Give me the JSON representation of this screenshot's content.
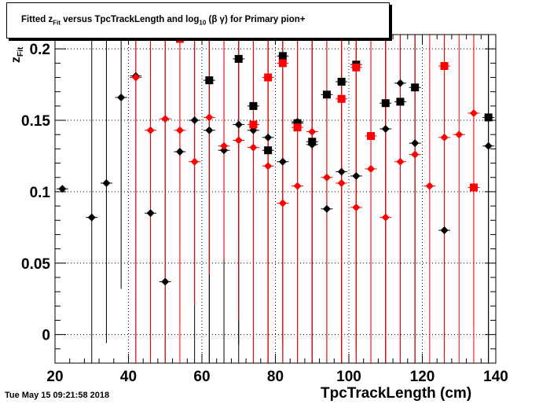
{
  "chart_data": {
    "type": "scatter",
    "title_parts": {
      "lead": "Fitted  z",
      "lead_sub": "Fit",
      "middle": "  versus TpcTrackLength and log",
      "middle_sub": "10",
      "tail": " (β γ) for Primary pion+"
    },
    "xlabel": "TpcTrackLength (cm)",
    "ylabel_main": "z",
    "ylabel_sub": "Fit",
    "xlim": [
      20,
      140
    ],
    "ylim": [
      -0.02,
      0.21
    ],
    "x_ticks": [
      20,
      40,
      60,
      80,
      100,
      120,
      140
    ],
    "y_ticks": [
      0,
      0.05,
      0.1,
      0.15,
      0.2
    ],
    "y_tick_labels": [
      "0",
      "0.05",
      "0.1",
      "0.15",
      "0.2"
    ],
    "grid": true,
    "colors": {
      "black": "#000000",
      "red": "#ff0000"
    },
    "series": [
      {
        "color": "#000000",
        "marker": "diamond",
        "points": [
          {
            "x": 22,
            "y": 0.102,
            "err": null
          },
          {
            "x": 30,
            "y": 0.082,
            "err": 0.2
          },
          {
            "x": 34,
            "y": 0.106,
            "err": 0.112
          },
          {
            "x": 38,
            "y": 0.166,
            "err": 0.134
          },
          {
            "x": 42,
            "y": 0.181,
            "err": 0.2
          },
          {
            "x": 46,
            "y": 0.085,
            "err": 0.2
          },
          {
            "x": 50,
            "y": 0.037,
            "err": 0.2
          },
          {
            "x": 54,
            "y": 0.128,
            "err": 0.068
          },
          {
            "x": 58,
            "y": 0.15,
            "err": 0.2
          },
          {
            "x": 62,
            "y": 0.143,
            "err": 0.2
          },
          {
            "x": 66,
            "y": 0.129,
            "err": 0.2
          },
          {
            "x": 70,
            "y": 0.147,
            "err": 0.2
          },
          {
            "x": 74,
            "y": 0.143,
            "err": 0.2
          },
          {
            "x": 78,
            "y": 0.138,
            "err": 0.2
          },
          {
            "x": 82,
            "y": 0.121,
            "err": 0.2
          },
          {
            "x": 86,
            "y": 0.149,
            "err": 0.2
          },
          {
            "x": 90,
            "y": 0.133,
            "err": 0.2
          },
          {
            "x": 94,
            "y": 0.088,
            "err": 0.2
          },
          {
            "x": 98,
            "y": 0.114,
            "err": 0.2
          },
          {
            "x": 102,
            "y": 0.111,
            "err": 0.2
          },
          {
            "x": 110,
            "y": 0.144,
            "err": 0.2
          },
          {
            "x": 114,
            "y": 0.176,
            "err": 0.2
          },
          {
            "x": 118,
            "y": 0.134,
            "err": 0.2
          },
          {
            "x": 126,
            "y": 0.073,
            "err": 0.2
          },
          {
            "x": 138,
            "y": 0.132,
            "err": 0.2
          }
        ]
      },
      {
        "color": "#000000",
        "marker": "square",
        "points": [
          {
            "x": 62,
            "y": 0.178,
            "err": 0.2
          },
          {
            "x": 70,
            "y": 0.193,
            "err": 0.2
          },
          {
            "x": 74,
            "y": 0.16,
            "err": 0.2
          },
          {
            "x": 78,
            "y": 0.129,
            "err": 0.2
          },
          {
            "x": 82,
            "y": 0.195,
            "err": 0.2
          },
          {
            "x": 86,
            "y": 0.148,
            "err": 0.2
          },
          {
            "x": 90,
            "y": 0.135,
            "err": 0.2
          },
          {
            "x": 94,
            "y": 0.168,
            "err": 0.2
          },
          {
            "x": 98,
            "y": 0.177,
            "err": 0.2
          },
          {
            "x": 102,
            "y": 0.189,
            "err": 0.2
          },
          {
            "x": 110,
            "y": 0.162,
            "err": 0.2
          },
          {
            "x": 114,
            "y": 0.163,
            "err": 0.2
          },
          {
            "x": 118,
            "y": 0.173,
            "err": 0.2
          },
          {
            "x": 138,
            "y": 0.152,
            "err": 0.2
          }
        ]
      },
      {
        "color": "#ff0000",
        "marker": "diamond",
        "points": [
          {
            "x": 42,
            "y": 0.18,
            "err": 0.2
          },
          {
            "x": 46,
            "y": 0.143,
            "err": 0.2
          },
          {
            "x": 50,
            "y": 0.151,
            "err": 0.2
          },
          {
            "x": 54,
            "y": 0.143,
            "err": 0.2
          },
          {
            "x": 58,
            "y": 0.121,
            "err": 0.1
          },
          {
            "x": 62,
            "y": 0.152,
            "err": 0.11
          },
          {
            "x": 66,
            "y": 0.132,
            "err": 0.08
          },
          {
            "x": 70,
            "y": 0.136,
            "err": 0.066
          },
          {
            "x": 74,
            "y": 0.131,
            "err": 0.08
          },
          {
            "x": 78,
            "y": 0.118,
            "err": 0.2
          },
          {
            "x": 82,
            "y": 0.092,
            "err": 0.2
          },
          {
            "x": 86,
            "y": 0.104,
            "err": 0.2
          },
          {
            "x": 90,
            "y": 0.142,
            "err": 0.2
          },
          {
            "x": 94,
            "y": 0.11,
            "err": 0.2
          },
          {
            "x": 98,
            "y": 0.106,
            "err": 0.2
          },
          {
            "x": 102,
            "y": 0.089,
            "err": 0.2
          },
          {
            "x": 106,
            "y": 0.116,
            "err": 0.2
          },
          {
            "x": 110,
            "y": 0.082,
            "err": 0.2
          },
          {
            "x": 114,
            "y": 0.121,
            "err": 0.2
          },
          {
            "x": 118,
            "y": 0.126,
            "err": 0.2
          },
          {
            "x": 122,
            "y": 0.104,
            "err": 0.2
          },
          {
            "x": 126,
            "y": 0.138,
            "err": 0.2
          },
          {
            "x": 130,
            "y": 0.14,
            "err": 0.2
          },
          {
            "x": 134,
            "y": 0.155,
            "err": 0.15
          }
        ]
      },
      {
        "color": "#ff0000",
        "marker": "square",
        "points": [
          {
            "x": 54,
            "y": 0.207,
            "err": 0.2
          },
          {
            "x": 70,
            "y": 0.21,
            "err": 0.2
          },
          {
            "x": 74,
            "y": 0.147,
            "err": 0.2
          },
          {
            "x": 78,
            "y": 0.18,
            "err": 0.2
          },
          {
            "x": 82,
            "y": 0.19,
            "err": 0.2
          },
          {
            "x": 86,
            "y": 0.145,
            "err": 0.2
          },
          {
            "x": 98,
            "y": 0.165,
            "err": 0.2
          },
          {
            "x": 102,
            "y": 0.187,
            "err": 0.2
          },
          {
            "x": 106,
            "y": 0.139,
            "err": 0.2
          },
          {
            "x": 126,
            "y": 0.188,
            "err": 0.2
          },
          {
            "x": 134,
            "y": 0.103,
            "err": 0.2
          }
        ]
      }
    ]
  },
  "footer": {
    "timestamp": "Tue May 15 09:21:58 2018"
  }
}
